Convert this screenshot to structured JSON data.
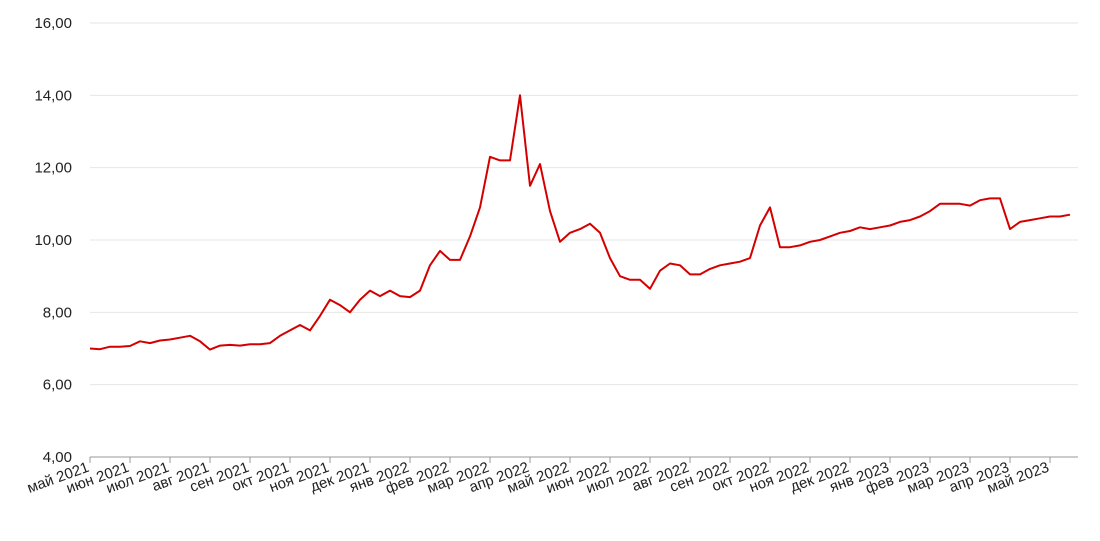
{
  "chart_data": {
    "type": "line",
    "categories": [
      "май 2021",
      null,
      null,
      null,
      "июн 2021",
      null,
      null,
      null,
      "июл 2021",
      null,
      null,
      null,
      "авг 2021",
      null,
      null,
      null,
      "сен 2021",
      null,
      null,
      null,
      "окт 2021",
      null,
      null,
      null,
      "ноя 2021",
      null,
      null,
      null,
      "дек 2021",
      null,
      null,
      null,
      "янв 2022",
      null,
      null,
      null,
      "фев 2022",
      null,
      null,
      null,
      "мар 2022",
      null,
      null,
      null,
      "апр 2022",
      null,
      null,
      null,
      "май 2022",
      null,
      null,
      null,
      "июн 2022",
      null,
      null,
      null,
      "июл 2022",
      null,
      null,
      null,
      "авг 2022",
      null,
      null,
      null,
      "сен 2022",
      null,
      null,
      null,
      "окт 2022",
      null,
      null,
      null,
      "ноя 2022",
      null,
      null,
      null,
      "дек 2022",
      null,
      null,
      null,
      "янв 2023",
      null,
      null,
      null,
      "фев 2023",
      null,
      null,
      null,
      "мар 2023",
      null,
      null,
      null,
      "апр 2023",
      null,
      null,
      null,
      "май 2023",
      null,
      null
    ],
    "series": [
      {
        "color": "#d40000",
        "values": [
          7.0,
          6.98,
          7.05,
          7.05,
          7.07,
          7.2,
          7.15,
          7.22,
          7.25,
          7.3,
          7.35,
          7.2,
          6.97,
          7.08,
          7.1,
          7.08,
          7.12,
          7.12,
          7.15,
          7.35,
          7.5,
          7.65,
          7.5,
          7.9,
          8.35,
          8.2,
          8.0,
          8.35,
          8.6,
          8.45,
          8.6,
          8.45,
          8.42,
          8.6,
          9.3,
          9.7,
          9.45,
          9.45,
          10.1,
          10.9,
          12.3,
          12.2,
          12.2,
          14.0,
          11.5,
          12.1,
          10.8,
          9.95,
          10.2,
          10.3,
          10.45,
          10.2,
          9.5,
          9.0,
          8.9,
          8.9,
          8.65,
          9.15,
          9.35,
          9.3,
          9.05,
          9.05,
          9.2,
          9.3,
          9.35,
          9.4,
          9.5,
          10.4,
          10.9,
          9.8,
          9.8,
          9.85,
          9.95,
          10.0,
          10.1,
          10.2,
          10.25,
          10.35,
          10.3,
          10.35,
          10.4,
          10.5,
          10.55,
          10.65,
          10.8,
          11.0,
          11.0,
          11.0,
          10.95,
          11.1,
          11.15,
          11.15,
          10.3,
          10.5,
          10.55,
          10.6,
          10.65,
          10.65,
          10.7
        ]
      }
    ],
    "ylim": [
      4,
      16
    ],
    "yticks": [
      {
        "value": 4,
        "label": "4,00"
      },
      {
        "value": 6,
        "label": "6,00"
      },
      {
        "value": 8,
        "label": "8,00"
      },
      {
        "value": 10,
        "label": "10,00"
      },
      {
        "value": 12,
        "label": "12,00"
      },
      {
        "value": 14,
        "label": "14,00"
      },
      {
        "value": 16,
        "label": "16,00"
      }
    ],
    "grid": true
  }
}
